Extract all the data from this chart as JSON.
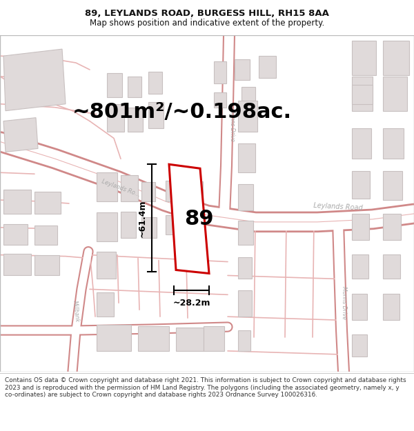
{
  "title": "89, LEYLANDS ROAD, BURGESS HILL, RH15 8AA",
  "subtitle": "Map shows position and indicative extent of the property.",
  "footer": "Contains OS data © Crown copyright and database right 2021. This information is subject to Crown copyright and database rights 2023 and is reproduced with the permission of HM Land Registry. The polygons (including the associated geometry, namely x, y co-ordinates) are subject to Crown copyright and database rights 2023 Ordnance Survey 100026316.",
  "area_label": "~801m²/~0.198ac.",
  "property_number": "89",
  "dim_width": "~28.2m",
  "dim_height": "~61.4m",
  "map_bg": "#f8f5f5",
  "road_fill": "#ffffff",
  "road_line": "#e8b4b4",
  "road_line2": "#d08888",
  "building_fill": "#e0dada",
  "building_edge": "#c8c0c0",
  "highlight_color": "#cc0000",
  "road_label_color": "#aaaaaa",
  "dim_color": "#111111",
  "title_color": "#111111",
  "footer_color": "#333333",
  "figsize": [
    6.0,
    6.25
  ],
  "dpi": 100,
  "title_fontsize": 9.5,
  "subtitle_fontsize": 8.5,
  "area_fontsize": 22,
  "number_fontsize": 22,
  "dim_fontsize": 9
}
